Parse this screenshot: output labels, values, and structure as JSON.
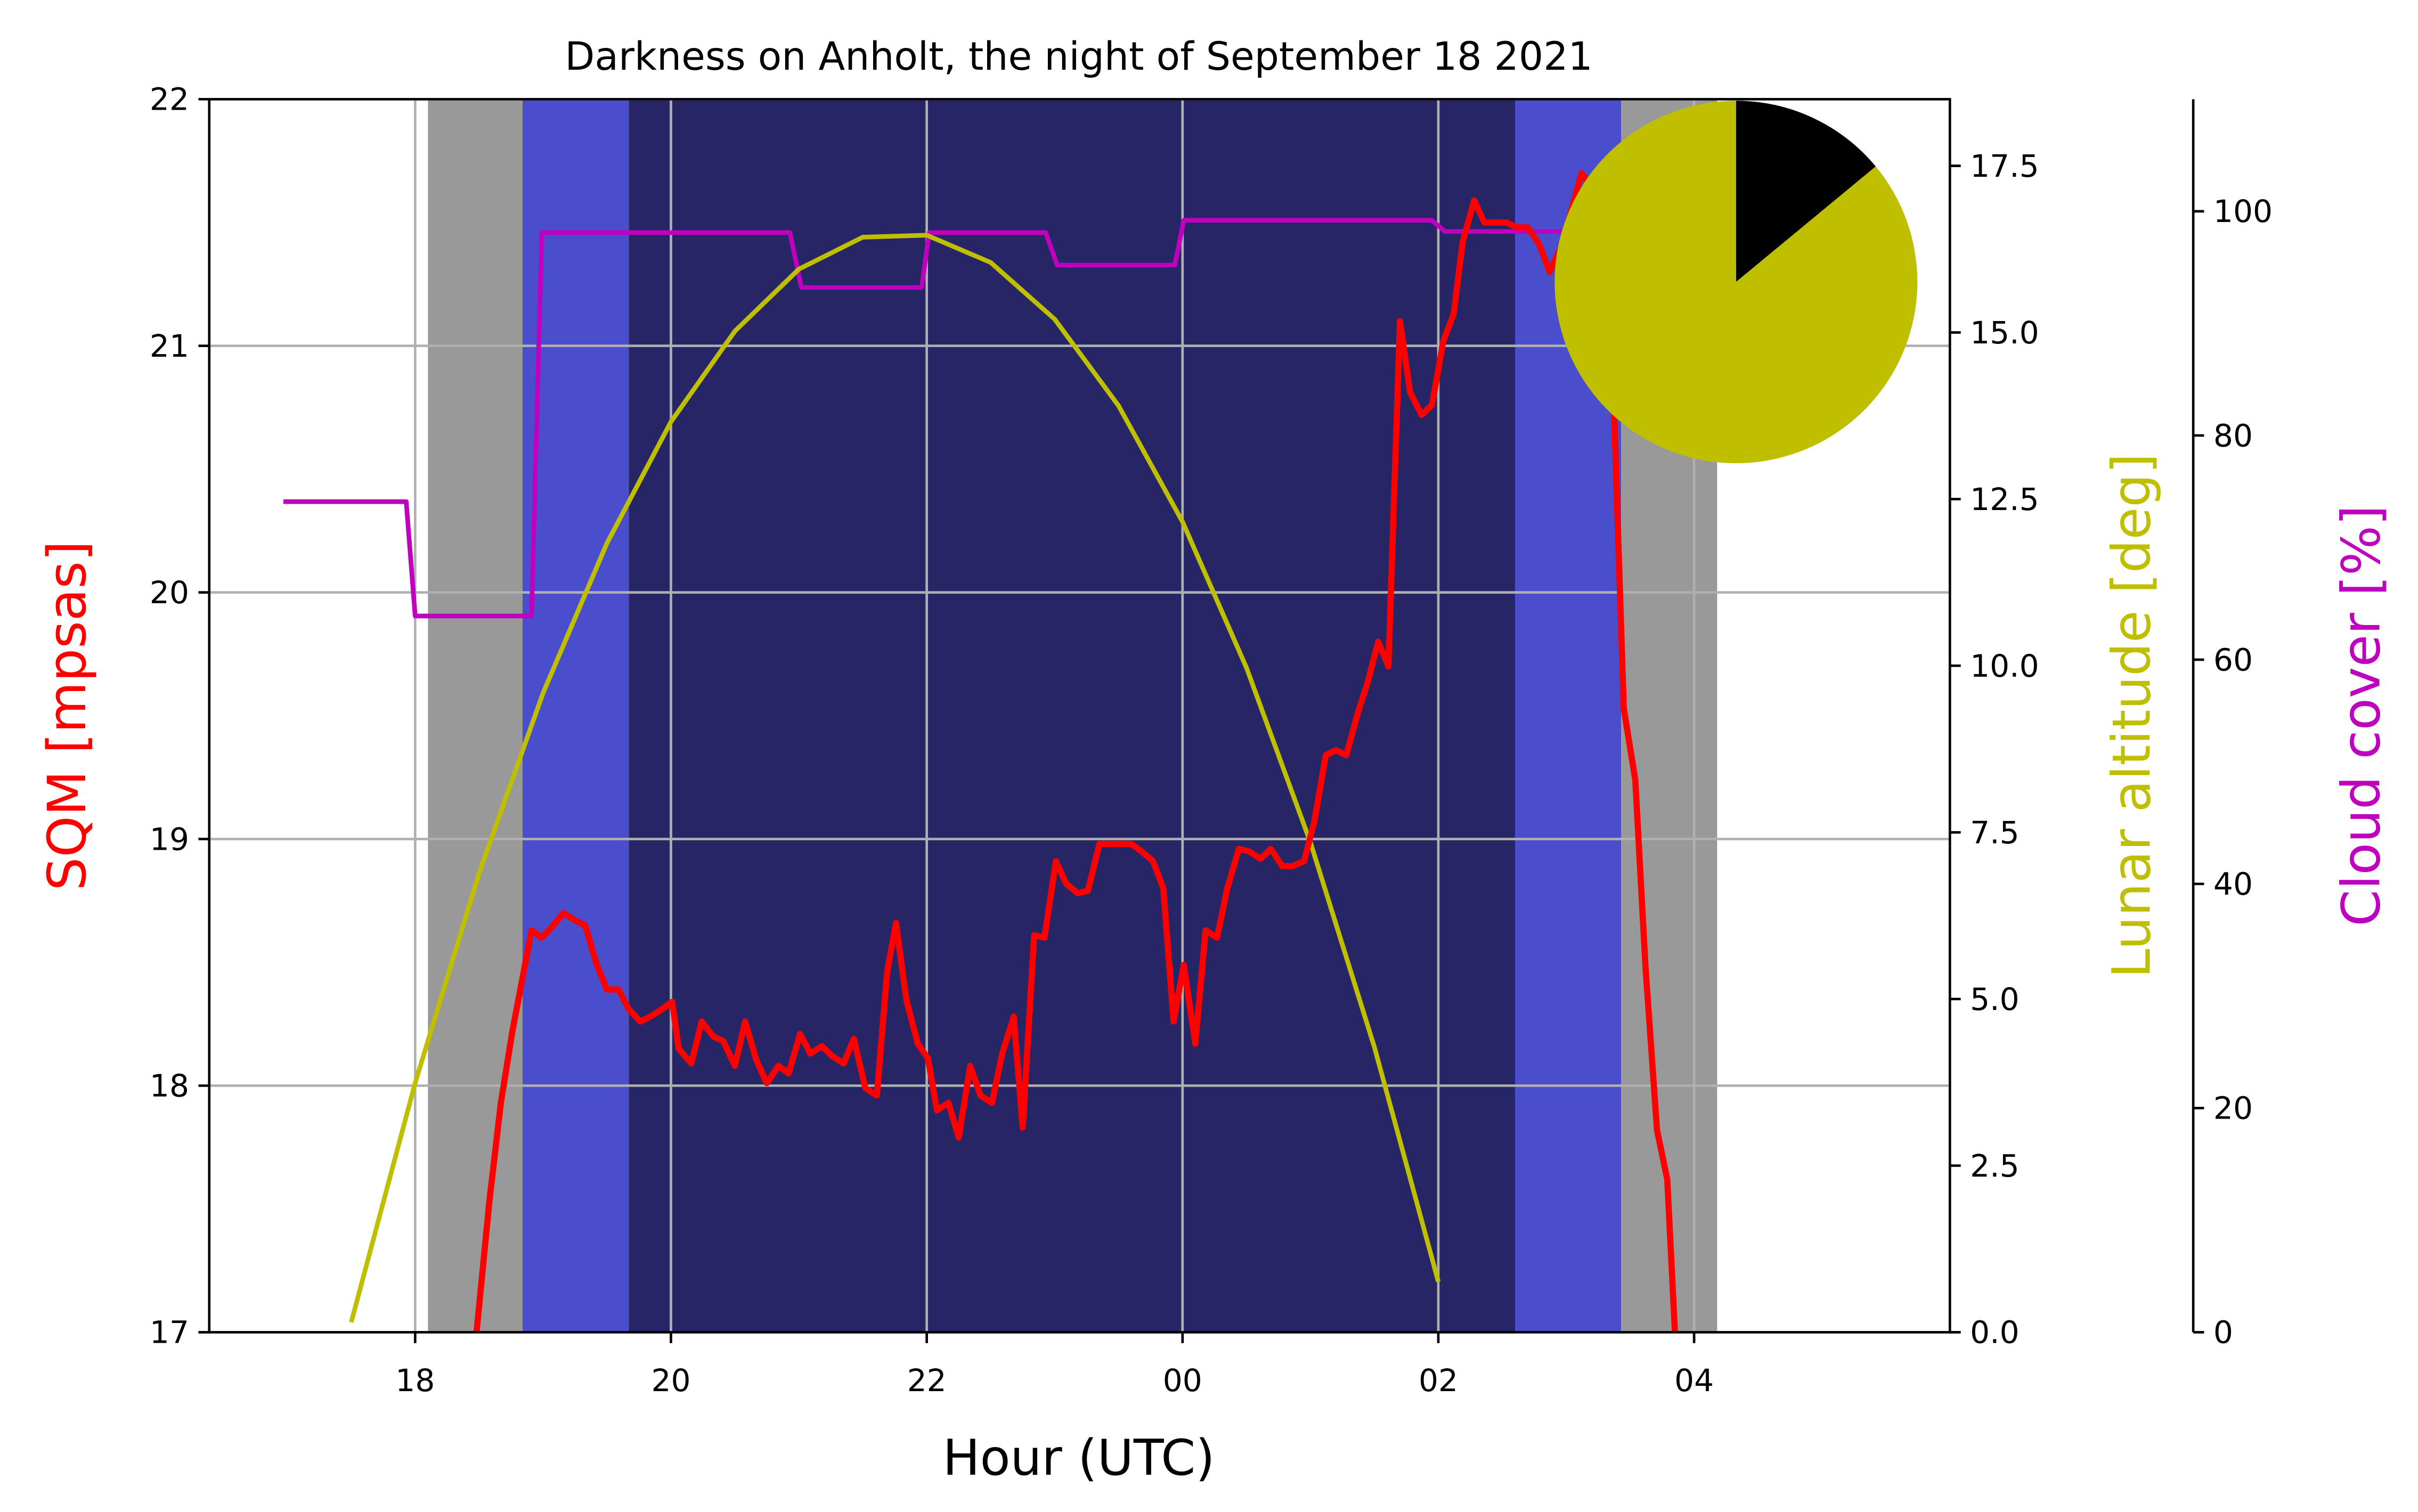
{
  "chart_data": {
    "type": "line",
    "title": "Darkness on Anholt, the night of September 18 2021",
    "xlabel": "Hour (UTC)",
    "ylabel": "SQM [mpsas]",
    "y2label": "Lunar altitude [deg]",
    "y3label": "Cloud cover [%]",
    "xlim": [
      16.39,
      30.0
    ],
    "xticks": [
      18,
      20,
      22,
      {
        "value": 24,
        "label": "00"
      },
      {
        "value": 26,
        "label": "02"
      },
      {
        "value": 28,
        "label": "04"
      }
    ],
    "ylim": [
      17,
      22
    ],
    "yticks": [
      17,
      18,
      19,
      20,
      21,
      22
    ],
    "y2lim": [
      0,
      18.5
    ],
    "y2ticks": [
      {
        "value": 0,
        "label": "0.0"
      },
      2.5,
      {
        "value": 5,
        "label": "5.0"
      },
      7.5,
      {
        "value": 10,
        "label": "10.0"
      },
      12.5,
      {
        "value": 15,
        "label": "15.0"
      },
      17.5
    ],
    "y3lim": [
      0,
      110
    ],
    "y3ticks": [
      0,
      20,
      40,
      60,
      80,
      100
    ],
    "grid": true,
    "twilight_bands": [
      {
        "start": 18.1,
        "end": 18.84,
        "color": "#999999"
      },
      {
        "start": 18.84,
        "end": 19.67,
        "color": "#4b4ecc"
      },
      {
        "start": 19.67,
        "end": 26.6,
        "color": "#262566"
      },
      {
        "start": 26.6,
        "end": 27.43,
        "color": "#4b4ecc"
      },
      {
        "start": 27.43,
        "end": 28.18,
        "color": "#999999"
      }
    ],
    "series": [
      {
        "name": "Cloud cover",
        "color": "#bf00bf",
        "axis": "y3",
        "x": [
          16.97,
          17.93,
          18.0,
          18.91,
          18.99,
          20.93,
          21.02,
          21.96,
          22.02,
          22.93,
          23.02,
          23.94,
          24.01,
          25.95,
          26.05,
          27.0
        ],
        "values": [
          74.1,
          74.1,
          63.9,
          63.9,
          98.1,
          98.1,
          93.2,
          93.2,
          98.1,
          98.1,
          95.2,
          95.2,
          99.2,
          99.2,
          98.2,
          98.2
        ]
      },
      {
        "name": "Lunar altitude",
        "color": "#bfbf00",
        "axis": "y2",
        "x": [
          17.5,
          18.0,
          18.5,
          19.0,
          19.5,
          20.0,
          20.5,
          21.0,
          21.5,
          22.0,
          22.5,
          23.0,
          23.5,
          24.0,
          24.5,
          25.0,
          25.5,
          26.0
        ],
        "values": [
          0.15,
          3.74,
          6.89,
          9.59,
          11.84,
          13.66,
          15.02,
          15.95,
          16.43,
          16.46,
          16.05,
          15.2,
          13.9,
          12.16,
          9.97,
          7.35,
          4.28,
          0.76
        ]
      },
      {
        "name": "SQM",
        "color": "#ff0000",
        "axis": "y",
        "x": [
          18.48,
          18.58,
          18.67,
          18.76,
          18.91,
          18.99,
          19.08,
          19.16,
          19.25,
          19.33,
          19.42,
          19.5,
          19.59,
          19.67,
          19.76,
          19.84,
          19.93,
          20.01,
          20.06,
          20.16,
          20.24,
          20.33,
          20.41,
          20.5,
          20.58,
          20.67,
          20.75,
          20.84,
          20.92,
          21.01,
          21.09,
          21.18,
          21.26,
          21.35,
          21.43,
          21.52,
          21.61,
          21.69,
          21.76,
          21.84,
          21.93,
          22.01,
          22.08,
          22.17,
          22.25,
          22.34,
          22.42,
          22.51,
          22.59,
          22.68,
          22.75,
          22.84,
          22.92,
          23.01,
          23.09,
          23.18,
          23.26,
          23.35,
          23.43,
          23.52,
          23.6,
          23.68,
          23.77,
          23.85,
          23.93,
          24.01,
          24.1,
          24.18,
          24.27,
          24.35,
          24.44,
          24.52,
          24.61,
          24.69,
          24.78,
          24.86,
          24.95,
          25.03,
          25.12,
          25.2,
          25.28,
          25.37,
          25.45,
          25.53,
          25.61,
          25.7,
          25.78,
          25.87,
          25.95,
          26.04,
          26.12,
          26.19,
          26.28,
          26.36,
          26.45,
          26.53,
          26.62,
          26.7,
          26.79,
          26.87,
          26.96,
          27.12,
          27.24,
          27.36,
          27.45,
          27.54,
          27.62,
          27.71,
          27.79,
          27.85
        ],
        "values": [
          17.0,
          17.53,
          17.93,
          18.22,
          18.63,
          18.6,
          18.65,
          18.7,
          18.67,
          18.65,
          18.49,
          18.39,
          18.39,
          18.31,
          18.26,
          18.28,
          18.31,
          18.34,
          18.15,
          18.09,
          18.26,
          18.2,
          18.18,
          18.08,
          18.26,
          18.1,
          18.01,
          18.08,
          18.05,
          18.21,
          18.13,
          18.16,
          18.12,
          18.09,
          18.19,
          17.99,
          17.96,
          18.46,
          18.66,
          18.35,
          18.17,
          18.11,
          17.9,
          17.93,
          17.79,
          18.08,
          17.96,
          17.93,
          18.13,
          18.28,
          17.83,
          18.61,
          18.6,
          18.91,
          18.82,
          18.78,
          18.79,
          18.98,
          18.98,
          18.98,
          18.98,
          18.95,
          18.91,
          18.8,
          18.26,
          18.49,
          18.17,
          18.63,
          18.6,
          18.8,
          18.96,
          18.95,
          18.92,
          18.96,
          18.89,
          18.89,
          18.91,
          19.07,
          19.34,
          19.36,
          19.34,
          19.51,
          19.64,
          19.8,
          19.7,
          21.1,
          20.81,
          20.72,
          20.76,
          21.02,
          21.13,
          21.42,
          21.59,
          21.5,
          21.5,
          21.5,
          21.48,
          21.48,
          21.41,
          21.3,
          21.4,
          21.7,
          21.62,
          20.96,
          19.53,
          19.24,
          18.48,
          17.82,
          17.62,
          17.0
        ]
      }
    ],
    "pie": {
      "type": "pie",
      "values": [
        14,
        86
      ],
      "colors": [
        "#000000",
        "#bfbf00"
      ]
    }
  }
}
